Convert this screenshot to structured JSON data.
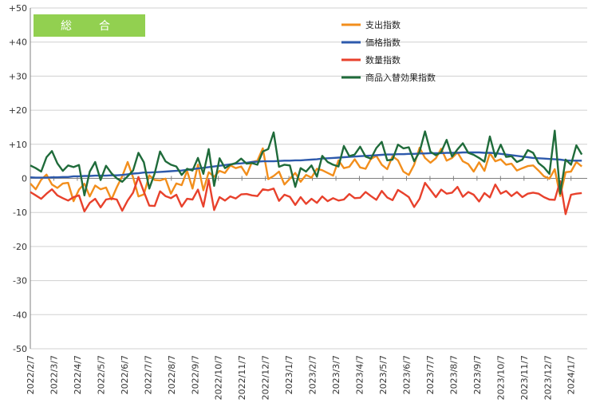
{
  "chart_data": {
    "type": "line",
    "badge": {
      "label": "総　合",
      "color": "#92D050"
    },
    "ylim": [
      -50,
      50
    ],
    "y_ticks": [
      {
        "value": 50,
        "label": "+50"
      },
      {
        "value": 40,
        "label": "+40"
      },
      {
        "value": 30,
        "label": "+30"
      },
      {
        "value": 20,
        "label": "+20"
      },
      {
        "value": 10,
        "label": "+10"
      },
      {
        "value": 0,
        "label": "0"
      },
      {
        "value": -10,
        "label": "-10"
      },
      {
        "value": -20,
        "label": "-20"
      },
      {
        "value": -30,
        "label": "-30"
      },
      {
        "value": -40,
        "label": "-40"
      },
      {
        "value": -50,
        "label": "-50"
      }
    ],
    "x_start": "2022/2/7",
    "x_labels": [
      "2022/2/7",
      "2022/3/7",
      "2022/4/7",
      "2022/5/7",
      "2022/6/7",
      "2022/7/7",
      "2022/8/7",
      "2022/9/7",
      "2022/10/7",
      "2022/11/7",
      "2022/12/7",
      "2023/1/7",
      "2023/2/7",
      "2023/3/7",
      "2023/4/7",
      "2023/5/7",
      "2023/6/7",
      "2023/7/7",
      "2023/8/7",
      "2023/9/7",
      "2023/10/7",
      "2023/11/7",
      "2023/12/7",
      "2024/1/7"
    ],
    "series": [
      {
        "name": "支出指数",
        "color": "#F28E1C",
        "values": [
          -1.5,
          -3.2,
          -0.4,
          1.1,
          -1.8,
          -2.8,
          -1.5,
          -1.3,
          -6.7,
          -3.3,
          -1.6,
          -5.3,
          -2.1,
          -3.2,
          -2.7,
          -6.2,
          -2.6,
          0.6,
          4.8,
          0.3,
          -5.3,
          -4.7,
          0.9,
          -0.5,
          -0.6,
          -0.1,
          -4.5,
          -1.5,
          -2.0,
          2.2,
          -3.0,
          4.0,
          -3.5,
          1.8,
          0.5,
          2.2,
          1.6,
          3.8,
          3.0,
          3.5,
          1.0,
          4.8,
          5.2,
          8.8,
          -0.2,
          0.7,
          2.0,
          -1.8,
          -0.1,
          1.6,
          -1.0,
          1.0,
          0.2,
          2.8,
          2.4,
          1.6,
          0.8,
          5.3,
          3.0,
          3.4,
          5.6,
          3.2,
          2.8,
          5.7,
          6.6,
          4.0,
          2.7,
          6.5,
          5.3,
          2.0,
          1.0,
          4.0,
          9.0,
          6.0,
          4.6,
          5.9,
          8.7,
          5.2,
          6.0,
          7.6,
          5.0,
          4.2,
          2.0,
          4.7,
          2.2,
          7.4,
          5.0,
          5.6,
          4.0,
          4.3,
          2.3,
          3.0,
          3.6,
          3.8,
          2.3,
          0.6,
          -0.1,
          2.7,
          -5.2,
          1.8,
          2.0,
          4.8,
          3.5
        ]
      },
      {
        "name": "価格指数",
        "color": "#2E5AAC",
        "values": [
          0.3,
          0.2,
          0.2,
          0.2,
          0.3,
          0.3,
          0.4,
          0.4,
          0.6,
          0.6,
          0.7,
          0.7,
          0.8,
          0.8,
          0.8,
          0.9,
          0.9,
          1.0,
          1.2,
          1.4,
          1.5,
          1.7,
          1.7,
          1.8,
          1.9,
          2.0,
          2.1,
          2.2,
          2.3,
          2.5,
          2.7,
          2.9,
          3.1,
          3.3,
          3.5,
          3.7,
          3.9,
          4.1,
          4.3,
          4.4,
          4.6,
          4.8,
          4.9,
          5.0,
          5.0,
          5.0,
          5.1,
          5.2,
          5.2,
          5.3,
          5.3,
          5.4,
          5.5,
          5.6,
          5.8,
          5.9,
          6.0,
          6.1,
          6.2,
          6.3,
          6.4,
          6.5,
          6.6,
          6.7,
          6.8,
          6.9,
          7.0,
          7.0,
          7.1,
          7.1,
          7.2,
          7.2,
          7.3,
          7.3,
          7.4,
          7.4,
          7.4,
          7.5,
          7.5,
          7.5,
          7.6,
          7.6,
          7.6,
          7.6,
          7.5,
          7.5,
          7.4,
          7.2,
          7.0,
          6.8,
          6.6,
          6.4,
          6.2,
          6.0,
          5.9,
          5.8,
          5.7,
          5.6,
          5.5,
          5.3,
          5.2,
          5.2,
          5.2
        ]
      },
      {
        "name": "数量指数",
        "color": "#E8412C",
        "values": [
          -4.0,
          -5.0,
          -6.0,
          -4.5,
          -3.2,
          -5.0,
          -5.8,
          -6.5,
          -5.5,
          -5.0,
          -9.7,
          -7.2,
          -6.0,
          -8.5,
          -6.2,
          -5.9,
          -6.2,
          -9.5,
          -6.5,
          -4.2,
          0.4,
          -3.9,
          -8.0,
          -8.1,
          -3.8,
          -5.2,
          -5.8,
          -4.8,
          -8.3,
          -6.0,
          -6.2,
          -3.3,
          -8.3,
          -0.4,
          -9.3,
          -5.5,
          -6.5,
          -5.3,
          -5.9,
          -4.7,
          -4.6,
          -5.0,
          -5.2,
          -3.2,
          -3.5,
          -3.0,
          -6.6,
          -4.8,
          -5.4,
          -7.8,
          -5.5,
          -7.5,
          -6.0,
          -7.2,
          -5.3,
          -6.7,
          -5.8,
          -6.5,
          -6.2,
          -4.6,
          -5.8,
          -5.7,
          -4.0,
          -5.2,
          -6.3,
          -3.7,
          -5.6,
          -6.4,
          -3.4,
          -4.4,
          -5.5,
          -8.4,
          -6.0,
          -1.3,
          -3.4,
          -5.5,
          -3.3,
          -4.5,
          -4.2,
          -2.5,
          -5.4,
          -4.0,
          -4.8,
          -6.8,
          -4.3,
          -5.6,
          -1.8,
          -4.5,
          -3.7,
          -5.2,
          -4.0,
          -5.5,
          -4.5,
          -4.2,
          -4.5,
          -5.5,
          -6.2,
          -6.3,
          -0.8,
          -10.5,
          -4.8,
          -4.5,
          -4.3
        ]
      },
      {
        "name": "商品入替効果指数",
        "color": "#1F6B3A",
        "values": [
          3.8,
          3.0,
          2.0,
          6.2,
          8.0,
          4.4,
          2.2,
          3.8,
          3.3,
          3.9,
          -5.0,
          2.0,
          4.8,
          -0.5,
          3.7,
          1.5,
          0.0,
          -1.0,
          0.6,
          2.3,
          7.5,
          4.7,
          -3.0,
          1.5,
          7.9,
          5.0,
          4.0,
          3.5,
          1.0,
          2.8,
          2.3,
          6.0,
          1.3,
          8.6,
          -2.2,
          5.9,
          3.0,
          4.0,
          4.5,
          5.8,
          4.3,
          4.5,
          4.0,
          7.9,
          8.6,
          13.5,
          3.4,
          4.0,
          3.8,
          -2.5,
          3.0,
          2.0,
          3.8,
          0.5,
          6.6,
          4.8,
          4.0,
          3.5,
          9.5,
          6.5,
          7.0,
          9.3,
          6.4,
          5.8,
          8.9,
          10.7,
          5.3,
          5.5,
          9.9,
          8.8,
          9.1,
          5.0,
          7.8,
          13.8,
          7.8,
          6.8,
          7.7,
          11.3,
          6.4,
          8.5,
          10.3,
          7.5,
          6.9,
          6.0,
          4.9,
          12.3,
          6.3,
          9.9,
          6.3,
          6.5,
          4.8,
          5.5,
          8.3,
          7.5,
          4.5,
          3.2,
          1.3,
          14.0,
          -4.5,
          5.5,
          4.0,
          9.7,
          7.0
        ]
      }
    ]
  }
}
